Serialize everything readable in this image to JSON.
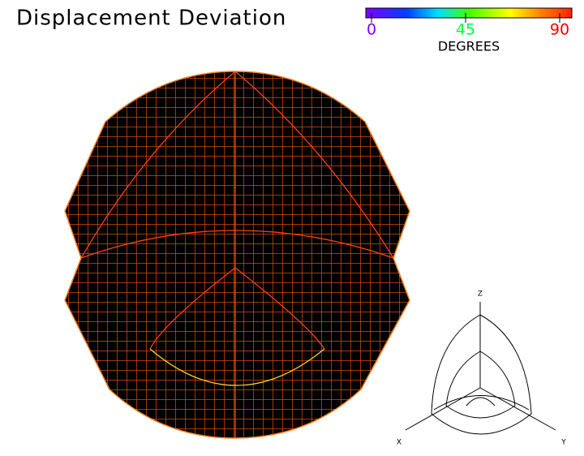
{
  "title": "Displacement Deviation",
  "colorbar": {
    "range": [
      0,
      90
    ],
    "ticks": [
      0,
      45,
      90
    ],
    "label": "DEGREES"
  },
  "axes": {
    "z": "Z",
    "x": "X",
    "y": "Y"
  }
}
